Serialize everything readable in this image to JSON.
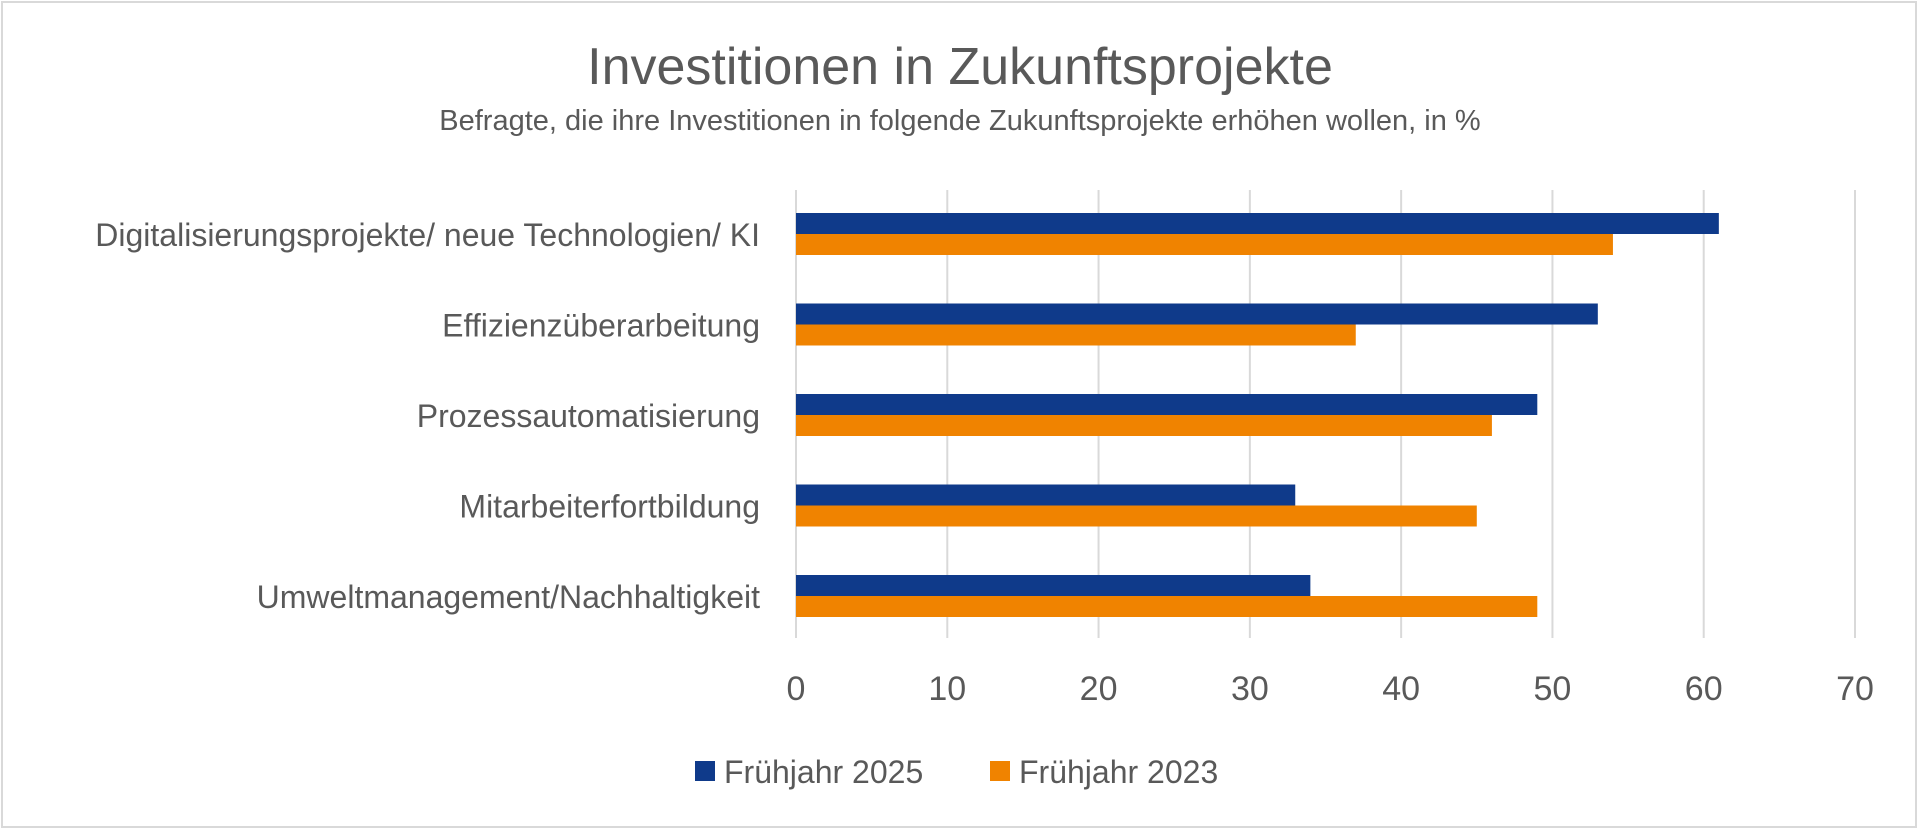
{
  "chart_data": {
    "type": "bar",
    "orientation": "horizontal",
    "title": "Investitionen in Zukunftsprojekte",
    "subtitle": "Befragte, die ihre Investitionen in folgende Zukunftsprojekte erhöhen wollen, in %",
    "xlabel": "",
    "ylabel": "",
    "categories": [
      "Digitalisierungsprojekte/ neue Technologien/ KI",
      "Effizienzüberarbeitung",
      "Prozessautomatisierung",
      "Mitarbeiterfortbildung",
      "Umweltmanagement/Nachhaltigkeit"
    ],
    "series": [
      {
        "name": "Frühjahr 2025",
        "color": "#0f3a8a",
        "values": [
          61,
          53,
          49,
          33,
          34
        ]
      },
      {
        "name": "Frühjahr 2023",
        "color": "#f08300",
        "values": [
          54,
          37,
          46,
          45,
          49
        ]
      }
    ],
    "xlim": [
      0,
      70
    ],
    "xticks": [
      0,
      10,
      20,
      30,
      40,
      50,
      60,
      70
    ],
    "grid": true,
    "legend_position": "bottom"
  }
}
